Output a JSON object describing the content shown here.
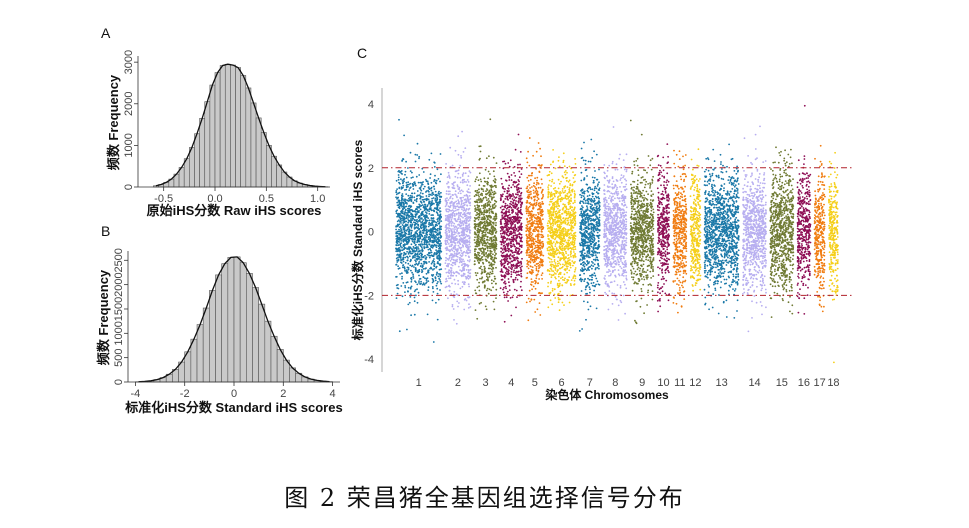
{
  "caption": "图 2  荣昌猪全基因组选择信号分布",
  "chart_data": [
    {
      "panel": "A",
      "type": "bar",
      "xlabel": "原始iHS分数 Raw iHS scores",
      "ylabel": "频数 Frequency",
      "xlim": [
        -0.75,
        1.12
      ],
      "ylim": [
        0,
        3100
      ],
      "xticks": [
        -0.5,
        0.0,
        0.5,
        1.0
      ],
      "xtick_labels": [
        "-0.5",
        "0.0",
        "0.5",
        "1.0"
      ],
      "yticks": [
        0,
        1000,
        2000,
        3000
      ],
      "ytick_labels": [
        "0",
        "1000",
        "2000",
        "3000"
      ],
      "bins": {
        "start": -0.6,
        "width": 0.05
      },
      "values": [
        30,
        60,
        110,
        190,
        310,
        470,
        680,
        950,
        1280,
        1650,
        2050,
        2450,
        2750,
        2920,
        2950,
        2930,
        2870,
        2680,
        2380,
        2020,
        1660,
        1310,
        1000,
        740,
        530,
        360,
        240,
        150,
        95,
        60,
        35,
        20,
        12,
        6
      ]
    },
    {
      "panel": "B",
      "type": "bar",
      "xlabel": "标准化iHS分数 Standard iHS scores",
      "ylabel": "频数 Frequency",
      "xlim": [
        -4.3,
        4.3
      ],
      "ylim": [
        0,
        2650
      ],
      "xticks": [
        -4,
        -2,
        0,
        2,
        4
      ],
      "xtick_labels": [
        "-4",
        "-2",
        "0",
        "2",
        "4"
      ],
      "yticks": [
        0,
        500,
        1000,
        1500,
        2000,
        2500
      ],
      "ytick_labels": [
        "0",
        "500",
        "1000",
        "1500",
        "2000",
        "2500"
      ],
      "bins": {
        "start": -4.0,
        "width": 0.25
      },
      "values": [
        5,
        12,
        25,
        50,
        90,
        160,
        260,
        410,
        620,
        880,
        1180,
        1520,
        1880,
        2200,
        2430,
        2560,
        2570,
        2450,
        2230,
        1940,
        1600,
        1250,
        940,
        670,
        450,
        290,
        180,
        105,
        60,
        32,
        16,
        8
      ]
    },
    {
      "panel": "C",
      "type": "scatter",
      "xlabel": "染色体 Chromosomes",
      "ylabel": "标准化iHS分数 Standard iHS scores",
      "ylim": [
        -4.4,
        4.5
      ],
      "yticks": [
        -4,
        -2,
        0,
        2,
        4
      ],
      "ytick_labels": [
        "-4",
        "-2",
        "0",
        "2",
        "4"
      ],
      "threshold_lines": [
        2,
        -2
      ],
      "threshold_color": "#b0202a",
      "chromosomes": [
        {
          "label": "1",
          "size": 274,
          "color": "#1a78a8"
        },
        {
          "label": "2",
          "size": 152,
          "color": "#b7aef0"
        },
        {
          "label": "3",
          "size": 133,
          "color": "#6f7a33"
        },
        {
          "label": "4",
          "size": 131,
          "color": "#8e0f55"
        },
        {
          "label": "5",
          "size": 104,
          "color": "#f07c10"
        },
        {
          "label": "6",
          "size": 171,
          "color": "#f5cf1a"
        },
        {
          "label": "7",
          "size": 122,
          "color": "#1a78a8"
        },
        {
          "label": "8",
          "size": 138,
          "color": "#b7aef0"
        },
        {
          "label": "9",
          "size": 139,
          "color": "#6f7a33"
        },
        {
          "label": "10",
          "size": 70,
          "color": "#8e0f55"
        },
        {
          "label": "11",
          "size": 79,
          "color": "#f07c10"
        },
        {
          "label": "12",
          "size": 61,
          "color": "#f5cf1a"
        },
        {
          "label": "13",
          "size": 208,
          "color": "#1a78a8"
        },
        {
          "label": "14",
          "size": 141,
          "color": "#b7aef0"
        },
        {
          "label": "15",
          "size": 140,
          "color": "#6f7a33"
        },
        {
          "label": "16",
          "size": 79,
          "color": "#8e0f55"
        },
        {
          "label": "17",
          "size": 63,
          "color": "#f07c10"
        },
        {
          "label": "18",
          "size": 55,
          "color": "#f5cf1a"
        }
      ]
    }
  ]
}
